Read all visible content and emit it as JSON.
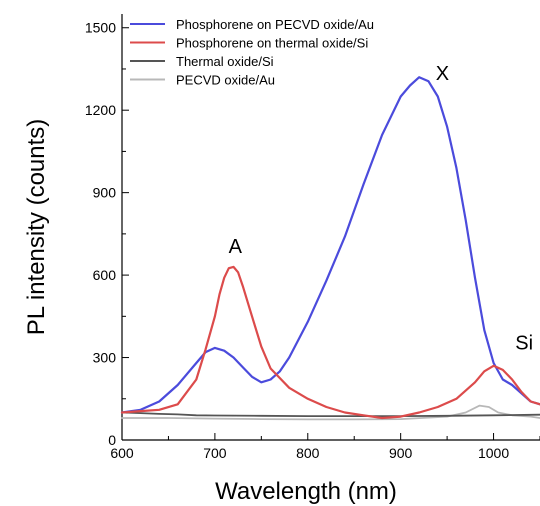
{
  "chart_data": {
    "type": "line",
    "title": "",
    "xlabel": "Wavelength (nm)",
    "ylabel": "PL intensity (counts)",
    "xlim": [
      600,
      1050
    ],
    "ylim": [
      0,
      1550
    ],
    "x_ticks": [
      "600",
      "700",
      "800",
      "900",
      "1000"
    ],
    "y_ticks": [
      "0",
      "300",
      "600",
      "900",
      "1200",
      "1500"
    ],
    "legend_position": "top-left",
    "grid": false,
    "annotations": [
      {
        "text": "X",
        "x": 945,
        "y": 1310
      },
      {
        "text": "A",
        "x": 722,
        "y": 680
      },
      {
        "text": "Si",
        "x": 1033,
        "y": 330
      }
    ],
    "series": [
      {
        "name": "Phosphorene on PECVD oxide/Au",
        "color": "#4b4bdc",
        "x": [
          600,
          620,
          640,
          660,
          680,
          690,
          700,
          710,
          720,
          730,
          740,
          750,
          760,
          770,
          780,
          800,
          820,
          840,
          860,
          880,
          900,
          910,
          920,
          930,
          940,
          950,
          960,
          970,
          980,
          990,
          1000,
          1010,
          1020,
          1030,
          1040,
          1050
        ],
        "y": [
          100,
          110,
          140,
          200,
          280,
          320,
          335,
          325,
          300,
          265,
          230,
          210,
          220,
          250,
          300,
          430,
          580,
          740,
          930,
          1110,
          1250,
          1290,
          1320,
          1305,
          1250,
          1140,
          990,
          800,
          590,
          400,
          280,
          220,
          200,
          170,
          140,
          130
        ]
      },
      {
        "name": "Phosphorene on thermal oxide/Si",
        "color": "#dc4b4b",
        "x": [
          600,
          620,
          640,
          660,
          680,
          690,
          700,
          705,
          710,
          715,
          720,
          725,
          730,
          740,
          750,
          760,
          780,
          800,
          820,
          840,
          860,
          880,
          900,
          920,
          940,
          960,
          980,
          990,
          1000,
          1010,
          1020,
          1030,
          1040,
          1050
        ],
        "y": [
          100,
          105,
          110,
          130,
          220,
          330,
          450,
          530,
          590,
          625,
          630,
          610,
          560,
          450,
          340,
          260,
          190,
          150,
          120,
          100,
          90,
          80,
          85,
          100,
          120,
          150,
          210,
          250,
          270,
          255,
          220,
          175,
          140,
          130
        ]
      },
      {
        "name": "Thermal oxide/Si",
        "color": "#555555",
        "x": [
          600,
          620,
          640,
          660,
          680,
          700,
          750,
          800,
          850,
          900,
          950,
          1000,
          1050
        ],
        "y": [
          100,
          98,
          95,
          93,
          90,
          89,
          88,
          87,
          87,
          87,
          88,
          90,
          92
        ]
      },
      {
        "name": "PECVD oxide/Au",
        "color": "#b8b8b8",
        "x": [
          600,
          650,
          700,
          750,
          800,
          850,
          900,
          950,
          970,
          985,
          995,
          1005,
          1020,
          1040,
          1050
        ],
        "y": [
          80,
          80,
          78,
          76,
          75,
          75,
          76,
          85,
          100,
          125,
          120,
          100,
          90,
          85,
          80
        ]
      }
    ]
  }
}
